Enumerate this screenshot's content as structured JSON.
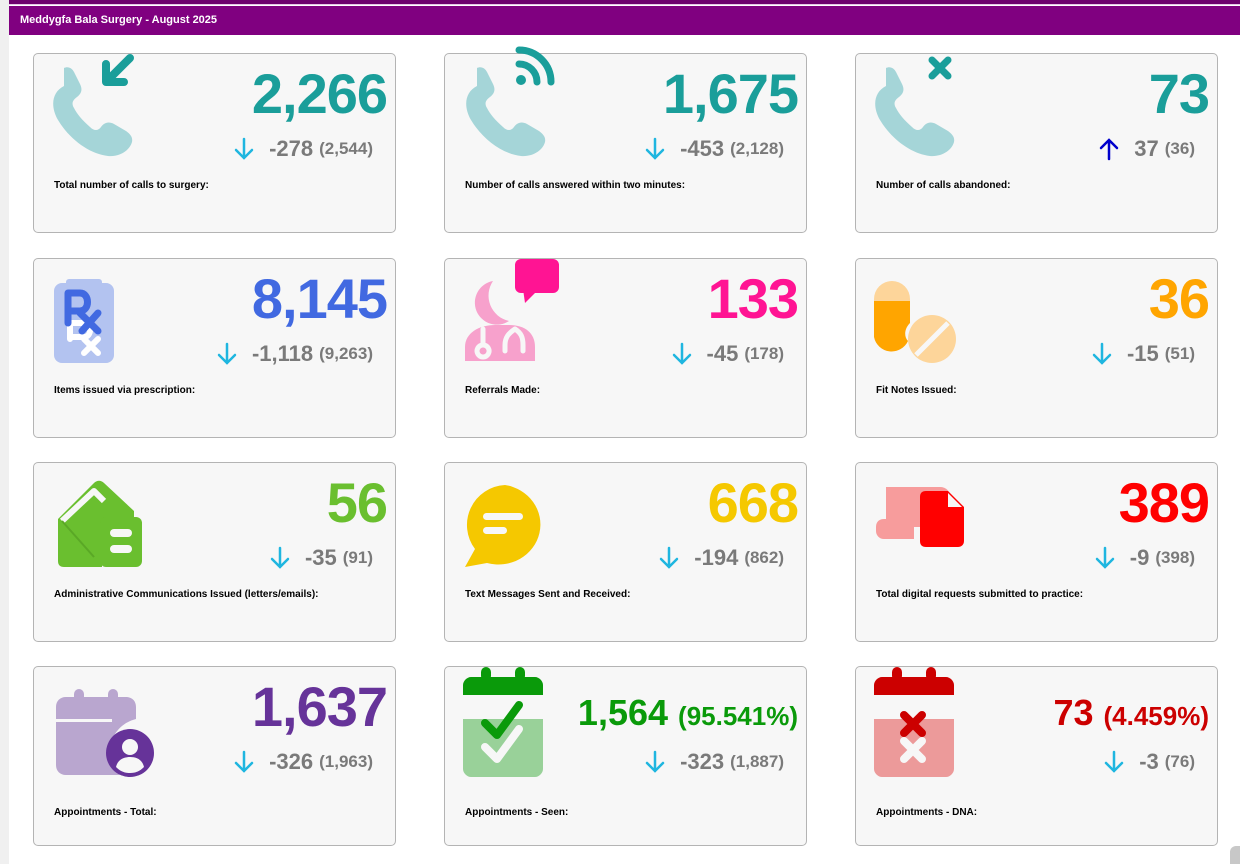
{
  "header": {
    "title": "Meddygfa Bala Surgery - August 2025"
  },
  "tiles": [
    {
      "id": "total-calls",
      "icon": "phone-incoming-icon",
      "value": "2,266",
      "delta": "-278",
      "previous": "(2,544)",
      "trend": "down",
      "label": "Total number of calls to surgery:",
      "color": "#1a9e9a"
    },
    {
      "id": "calls-answered",
      "icon": "phone-ringing-icon",
      "value": "1,675",
      "delta": "-453",
      "previous": "(2,128)",
      "trend": "down",
      "label": "Number of calls answered within two minutes:",
      "color": "#1a9e9a"
    },
    {
      "id": "calls-abandoned",
      "icon": "phone-missed-icon",
      "value": "73",
      "delta": "37",
      "previous": "(36)",
      "trend": "up",
      "label": "Number of calls abandoned:",
      "color": "#1a9e9a"
    },
    {
      "id": "prescriptions",
      "icon": "prescription-icon",
      "value": "8,145",
      "delta": "-1,118",
      "previous": "(9,263)",
      "trend": "down",
      "label": "Items issued via prescription:",
      "color": "#4169e1"
    },
    {
      "id": "referrals",
      "icon": "doctor-chat-icon",
      "value": "133",
      "delta": "-45",
      "previous": "(178)",
      "trend": "down",
      "label": "Referrals Made:",
      "color": "#ff1493"
    },
    {
      "id": "fit-notes",
      "icon": "pills-icon",
      "value": "36",
      "delta": "-15",
      "previous": "(51)",
      "trend": "down",
      "label": "Fit Notes Issued:",
      "color": "#ffa500"
    },
    {
      "id": "admin-comms",
      "icon": "mailbox-icon",
      "value": "56",
      "delta": "-35",
      "previous": "(91)",
      "trend": "down",
      "label": "Administrative Communications Issued (letters/emails):",
      "color": "#6abf2f"
    },
    {
      "id": "text-messages",
      "icon": "chat-bubble-icon",
      "value": "668",
      "delta": "-194",
      "previous": "(862)",
      "trend": "down",
      "label": "Text Messages Sent and Received:",
      "color": "#f5c800"
    },
    {
      "id": "digital-requests",
      "icon": "laptop-document-icon",
      "value": "389",
      "delta": "-9",
      "previous": "(398)",
      "trend": "down",
      "label": "Total digital requests submitted to practice:",
      "color": "#ff0000"
    },
    {
      "id": "appointments-total",
      "icon": "calendar-user-icon",
      "value": "1,637",
      "delta": "-326",
      "previous": "(1,963)",
      "trend": "down",
      "label": "Appointments - Total:",
      "color": "#663399"
    },
    {
      "id": "appointments-seen",
      "icon": "calendar-check-icon",
      "value": "1,564",
      "percent": "(95.541%)",
      "delta": "-323",
      "previous": "(1,887)",
      "trend": "down",
      "label": "Appointments - Seen:",
      "color": "#0a9a0a"
    },
    {
      "id": "appointments-dna",
      "icon": "calendar-cross-icon",
      "value": "73",
      "percent": "(4.459%)",
      "delta": "-3",
      "previous": "(76)",
      "trend": "down",
      "label": "Appointments - DNA:",
      "color": "#cc0000"
    }
  ],
  "colors": {
    "header": "#800080",
    "trend_down": "#1fb6e0",
    "trend_up": "#0000cc",
    "delta_text": "#7a7a7a"
  }
}
